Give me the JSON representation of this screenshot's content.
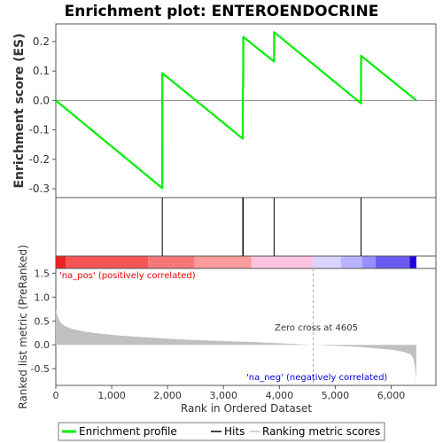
{
  "title": "Enrichment plot: ENTEROENDOCRINE",
  "colors": {
    "es_line": "#00ee00",
    "hits": "#000000",
    "metric_fill": "#c0c0c0",
    "pos_label": "#ee0000",
    "neg_label": "#0000dd",
    "zero_cross_line": "#aaaaaa"
  },
  "labels": {
    "pos": "'na_pos' (positively correlated)",
    "neg": "'na_neg' (negatively correlated)",
    "zero_cross": "Zero cross at 4605"
  },
  "legend": {
    "profile": "Enrichment profile",
    "hits": "Hits",
    "metric": "Ranking metric scores"
  },
  "chart_data": [
    {
      "type": "line",
      "name": "enrichment-profile",
      "ylabel": "Enrichment score (ES)",
      "xlim": [
        0,
        6800
      ],
      "ylim": [
        -0.33,
        0.26
      ],
      "yticks": [
        -0.3,
        -0.2,
        -0.1,
        0.0,
        0.1,
        0.2
      ],
      "ytick_labels": [
        "-0.3",
        "-0.2",
        "-0.1",
        "0.0",
        "0.1",
        "0.2"
      ],
      "grid": false,
      "points": [
        [
          0,
          0.0
        ],
        [
          1905,
          -0.298
        ],
        [
          1906,
          0.093
        ],
        [
          3345,
          -0.13
        ],
        [
          3346,
          0.045
        ],
        [
          3352,
          0.045
        ],
        [
          3353,
          0.216
        ],
        [
          3905,
          0.132
        ],
        [
          3906,
          0.232
        ],
        [
          5460,
          -0.01
        ],
        [
          5461,
          0.152
        ],
        [
          6450,
          0.0
        ]
      ]
    },
    {
      "type": "hits",
      "name": "hits",
      "positions": [
        1905,
        3345,
        3352,
        3905,
        5460
      ]
    },
    {
      "type": "heatmap",
      "name": "ranked-list-colorbar",
      "segments": [
        {
          "from": 0,
          "to": 180,
          "color": "#ee2222"
        },
        {
          "from": 180,
          "to": 1650,
          "color": "#f55555"
        },
        {
          "from": 1650,
          "to": 2480,
          "color": "#f77676"
        },
        {
          "from": 2480,
          "to": 3500,
          "color": "#fa9a9a"
        },
        {
          "from": 3500,
          "to": 4605,
          "color": "#fcc3e3"
        },
        {
          "from": 4605,
          "to": 5100,
          "color": "#d8d4ff"
        },
        {
          "from": 5100,
          "to": 5480,
          "color": "#bab3ff"
        },
        {
          "from": 5480,
          "to": 5720,
          "color": "#9490ff"
        },
        {
          "from": 5720,
          "to": 6330,
          "color": "#6a5af0"
        },
        {
          "from": 6330,
          "to": 6450,
          "color": "#2200e0"
        }
      ]
    },
    {
      "type": "area",
      "name": "ranking-metric",
      "xlabel": "Rank in Ordered Dataset",
      "ylabel": "Ranked list metric (PreRanked)",
      "xlim": [
        0,
        6800
      ],
      "ylim": [
        -0.85,
        1.6
      ],
      "xticks": [
        0,
        1000,
        2000,
        3000,
        4000,
        5000,
        6000
      ],
      "xtick_labels": [
        "0",
        "1,000",
        "2,000",
        "3,000",
        "4,000",
        "5,000",
        "6,000"
      ],
      "yticks": [
        -0.5,
        0.0,
        0.5,
        1.0,
        1.5
      ],
      "ytick_labels": [
        "-0.5",
        "0.0",
        "0.5",
        "1.0",
        "1.5"
      ],
      "zero_cross": 4605,
      "points": [
        [
          0,
          0.75
        ],
        [
          30,
          0.6
        ],
        [
          80,
          0.47
        ],
        [
          150,
          0.4
        ],
        [
          300,
          0.33
        ],
        [
          500,
          0.28
        ],
        [
          800,
          0.23
        ],
        [
          1200,
          0.19
        ],
        [
          1600,
          0.16
        ],
        [
          2000,
          0.13
        ],
        [
          2500,
          0.1
        ],
        [
          3000,
          0.08
        ],
        [
          3500,
          0.06
        ],
        [
          4000,
          0.035
        ],
        [
          4605,
          0.0
        ],
        [
          5000,
          -0.02
        ],
        [
          5500,
          -0.05
        ],
        [
          6000,
          -0.1
        ],
        [
          6200,
          -0.14
        ],
        [
          6350,
          -0.2
        ],
        [
          6400,
          -0.3
        ],
        [
          6430,
          -0.5
        ],
        [
          6450,
          -0.75
        ]
      ]
    }
  ]
}
